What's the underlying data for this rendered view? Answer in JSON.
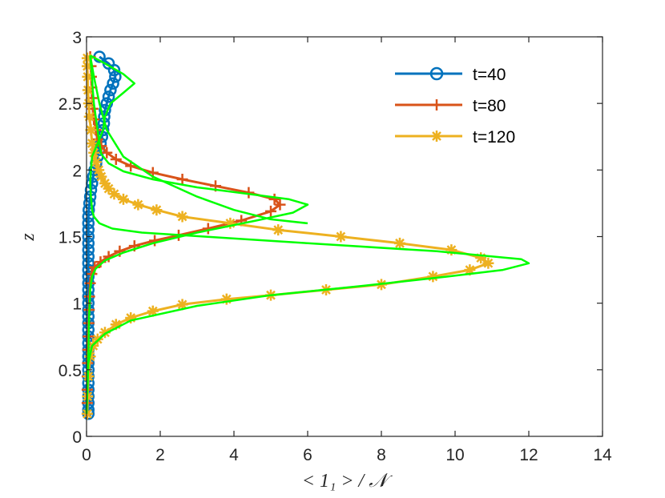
{
  "chart_data": {
    "type": "line",
    "title": "",
    "xlabel": "< 1₁ > / 𝒩",
    "ylabel": "z",
    "xlim": [
      0,
      14
    ],
    "ylim": [
      0,
      3
    ],
    "xticks": [
      "0",
      "2",
      "4",
      "6",
      "8",
      "10",
      "12",
      "14"
    ],
    "yticks": [
      "0",
      "0.5",
      "1",
      "1.5",
      "2",
      "2.5",
      "3"
    ],
    "grid": false,
    "legend_position": "top-right",
    "colors": {
      "t40": "#0072BD",
      "t80": "#D95319",
      "t120": "#EDB120",
      "fit": "#00FF00"
    },
    "series": [
      {
        "name": "t=40",
        "color": "#0072BD",
        "marker": "circle",
        "points": [
          [
            0.05,
            0.17
          ],
          [
            0.05,
            0.2
          ],
          [
            0.05,
            0.25
          ],
          [
            0.05,
            0.3
          ],
          [
            0.05,
            0.35
          ],
          [
            0.05,
            0.4
          ],
          [
            0.05,
            0.45
          ],
          [
            0.05,
            0.5
          ],
          [
            0.05,
            0.55
          ],
          [
            0.05,
            0.6
          ],
          [
            0.05,
            0.65
          ],
          [
            0.05,
            0.7
          ],
          [
            0.05,
            0.75
          ],
          [
            0.05,
            0.8
          ],
          [
            0.05,
            0.85
          ],
          [
            0.05,
            0.9
          ],
          [
            0.05,
            0.95
          ],
          [
            0.05,
            1.0
          ],
          [
            0.05,
            1.05
          ],
          [
            0.05,
            1.1
          ],
          [
            0.05,
            1.15
          ],
          [
            0.05,
            1.2
          ],
          [
            0.05,
            1.25
          ],
          [
            0.05,
            1.3
          ],
          [
            0.05,
            1.35
          ],
          [
            0.05,
            1.4
          ],
          [
            0.05,
            1.45
          ],
          [
            0.05,
            1.5
          ],
          [
            0.05,
            1.55
          ],
          [
            0.05,
            1.6
          ],
          [
            0.05,
            1.65
          ],
          [
            0.06,
            1.7
          ],
          [
            0.08,
            1.75
          ],
          [
            0.1,
            1.8
          ],
          [
            0.12,
            1.85
          ],
          [
            0.15,
            1.9
          ],
          [
            0.18,
            1.95
          ],
          [
            0.22,
            2.0
          ],
          [
            0.26,
            2.05
          ],
          [
            0.3,
            2.1
          ],
          [
            0.34,
            2.15
          ],
          [
            0.38,
            2.2
          ],
          [
            0.42,
            2.25
          ],
          [
            0.45,
            2.3
          ],
          [
            0.47,
            2.35
          ],
          [
            0.48,
            2.4
          ],
          [
            0.5,
            2.45
          ],
          [
            0.55,
            2.5
          ],
          [
            0.6,
            2.55
          ],
          [
            0.65,
            2.6
          ],
          [
            0.72,
            2.65
          ],
          [
            0.78,
            2.7
          ],
          [
            0.75,
            2.75
          ],
          [
            0.6,
            2.8
          ],
          [
            0.35,
            2.85
          ]
        ]
      },
      {
        "name": "t=80",
        "color": "#D95319",
        "marker": "plus",
        "points": [
          [
            0.02,
            0.17
          ],
          [
            0.02,
            0.25
          ],
          [
            0.02,
            0.35
          ],
          [
            0.02,
            0.45
          ],
          [
            0.03,
            0.55
          ],
          [
            0.04,
            0.65
          ],
          [
            0.05,
            0.75
          ],
          [
            0.06,
            0.85
          ],
          [
            0.07,
            0.95
          ],
          [
            0.08,
            1.05
          ],
          [
            0.1,
            1.15
          ],
          [
            0.14,
            1.22
          ],
          [
            0.22,
            1.27
          ],
          [
            0.38,
            1.31
          ],
          [
            0.6,
            1.35
          ],
          [
            0.9,
            1.39
          ],
          [
            1.3,
            1.43
          ],
          [
            1.85,
            1.47
          ],
          [
            2.5,
            1.51
          ],
          [
            3.3,
            1.56
          ],
          [
            4.2,
            1.62
          ],
          [
            5.0,
            1.69
          ],
          [
            5.25,
            1.74
          ],
          [
            5.1,
            1.78
          ],
          [
            4.4,
            1.83
          ],
          [
            3.5,
            1.88
          ],
          [
            2.6,
            1.93
          ],
          [
            1.8,
            1.98
          ],
          [
            1.2,
            2.03
          ],
          [
            0.8,
            2.08
          ],
          [
            0.55,
            2.13
          ],
          [
            0.4,
            2.18
          ],
          [
            0.3,
            2.23
          ],
          [
            0.25,
            2.3
          ],
          [
            0.2,
            2.38
          ],
          [
            0.17,
            2.46
          ],
          [
            0.15,
            2.54
          ],
          [
            0.14,
            2.62
          ],
          [
            0.13,
            2.7
          ],
          [
            0.12,
            2.78
          ],
          [
            0.1,
            2.85
          ]
        ]
      },
      {
        "name": "t=120",
        "color": "#EDB120",
        "marker": "star",
        "points": [
          [
            0.02,
            0.17
          ],
          [
            0.03,
            0.3
          ],
          [
            0.05,
            0.45
          ],
          [
            0.1,
            0.6
          ],
          [
            0.18,
            0.68
          ],
          [
            0.3,
            0.73
          ],
          [
            0.5,
            0.78
          ],
          [
            0.8,
            0.84
          ],
          [
            1.2,
            0.89
          ],
          [
            1.8,
            0.94
          ],
          [
            2.6,
            0.99
          ],
          [
            3.8,
            1.03
          ],
          [
            5.0,
            1.06
          ],
          [
            6.5,
            1.1
          ],
          [
            8.0,
            1.14
          ],
          [
            9.4,
            1.2
          ],
          [
            10.4,
            1.25
          ],
          [
            10.9,
            1.3
          ],
          [
            10.7,
            1.34
          ],
          [
            9.9,
            1.4
          ],
          [
            8.5,
            1.45
          ],
          [
            6.9,
            1.5
          ],
          [
            5.2,
            1.55
          ],
          [
            3.9,
            1.6
          ],
          [
            2.6,
            1.65
          ],
          [
            1.9,
            1.7
          ],
          [
            1.4,
            1.74
          ],
          [
            1.0,
            1.78
          ],
          [
            0.75,
            1.82
          ],
          [
            0.6,
            1.86
          ],
          [
            0.5,
            1.9
          ],
          [
            0.4,
            1.95
          ],
          [
            0.33,
            2.0
          ],
          [
            0.26,
            2.06
          ],
          [
            0.2,
            2.13
          ],
          [
            0.15,
            2.2
          ],
          [
            0.12,
            2.3
          ],
          [
            0.08,
            2.4
          ],
          [
            0.06,
            2.5
          ],
          [
            0.04,
            2.6
          ],
          [
            0.03,
            2.7
          ],
          [
            0.02,
            2.78
          ],
          [
            0.02,
            2.84
          ]
        ]
      },
      {
        "name": "",
        "color": "#00FF00",
        "marker": "none",
        "points": [
          [
            0.0,
            0.17
          ],
          [
            0.05,
            0.55
          ],
          [
            0.15,
            0.68
          ],
          [
            0.5,
            0.77
          ],
          [
            1.2,
            0.87
          ],
          [
            3.0,
            0.98
          ],
          [
            5.0,
            1.06
          ],
          [
            7.5,
            1.13
          ],
          [
            9.8,
            1.2
          ],
          [
            11.3,
            1.25
          ],
          [
            12.0,
            1.3
          ],
          [
            11.8,
            1.33
          ],
          [
            9.5,
            1.39
          ],
          [
            6.0,
            1.45
          ],
          [
            3.2,
            1.5
          ],
          [
            1.5,
            1.53
          ],
          [
            0.7,
            1.56
          ],
          [
            0.35,
            1.6
          ],
          [
            0.2,
            1.65
          ],
          [
            0.15,
            1.7
          ],
          [
            0.12,
            1.8
          ],
          [
            0.1,
            1.9
          ],
          [
            0.12,
            2.0
          ],
          [
            0.15,
            2.1
          ],
          [
            0.3,
            2.2
          ],
          [
            0.45,
            2.3
          ],
          [
            0.5,
            2.4
          ],
          [
            0.65,
            2.5
          ],
          [
            1.0,
            2.58
          ],
          [
            1.3,
            2.65
          ],
          [
            1.0,
            2.72
          ],
          [
            0.5,
            2.8
          ],
          [
            0.1,
            2.86
          ]
        ]
      },
      {
        "name": "",
        "color": "#00FF00",
        "marker": "none",
        "points": [
          [
            0.0,
            0.17
          ],
          [
            0.05,
            0.6
          ],
          [
            0.07,
            0.9
          ],
          [
            0.1,
            1.1
          ],
          [
            0.15,
            1.2
          ],
          [
            0.25,
            1.26
          ],
          [
            0.5,
            1.32
          ],
          [
            1.0,
            1.38
          ],
          [
            1.8,
            1.45
          ],
          [
            3.0,
            1.53
          ],
          [
            4.6,
            1.62
          ],
          [
            5.6,
            1.68
          ],
          [
            6.0,
            1.74
          ],
          [
            5.5,
            1.78
          ],
          [
            4.4,
            1.82
          ],
          [
            3.0,
            1.87
          ],
          [
            1.8,
            1.93
          ],
          [
            1.0,
            1.99
          ],
          [
            0.6,
            2.05
          ],
          [
            0.4,
            2.12
          ],
          [
            0.35,
            2.2
          ],
          [
            0.3,
            2.3
          ],
          [
            0.25,
            2.4
          ],
          [
            0.2,
            2.5
          ],
          [
            0.17,
            2.6
          ],
          [
            0.15,
            2.7
          ],
          [
            0.12,
            2.8
          ],
          [
            0.1,
            2.86
          ]
        ]
      },
      {
        "name": "",
        "color": "#00FF00",
        "marker": "none",
        "points": [
          [
            0.1,
            2.86
          ],
          [
            0.2,
            2.7
          ],
          [
            0.35,
            2.5
          ],
          [
            0.55,
            2.3
          ],
          [
            1.0,
            2.1
          ],
          [
            1.8,
            1.95
          ],
          [
            3.0,
            1.8
          ],
          [
            4.0,
            1.7
          ],
          [
            5.0,
            1.63
          ],
          [
            6.0,
            1.6
          ]
        ]
      }
    ]
  }
}
